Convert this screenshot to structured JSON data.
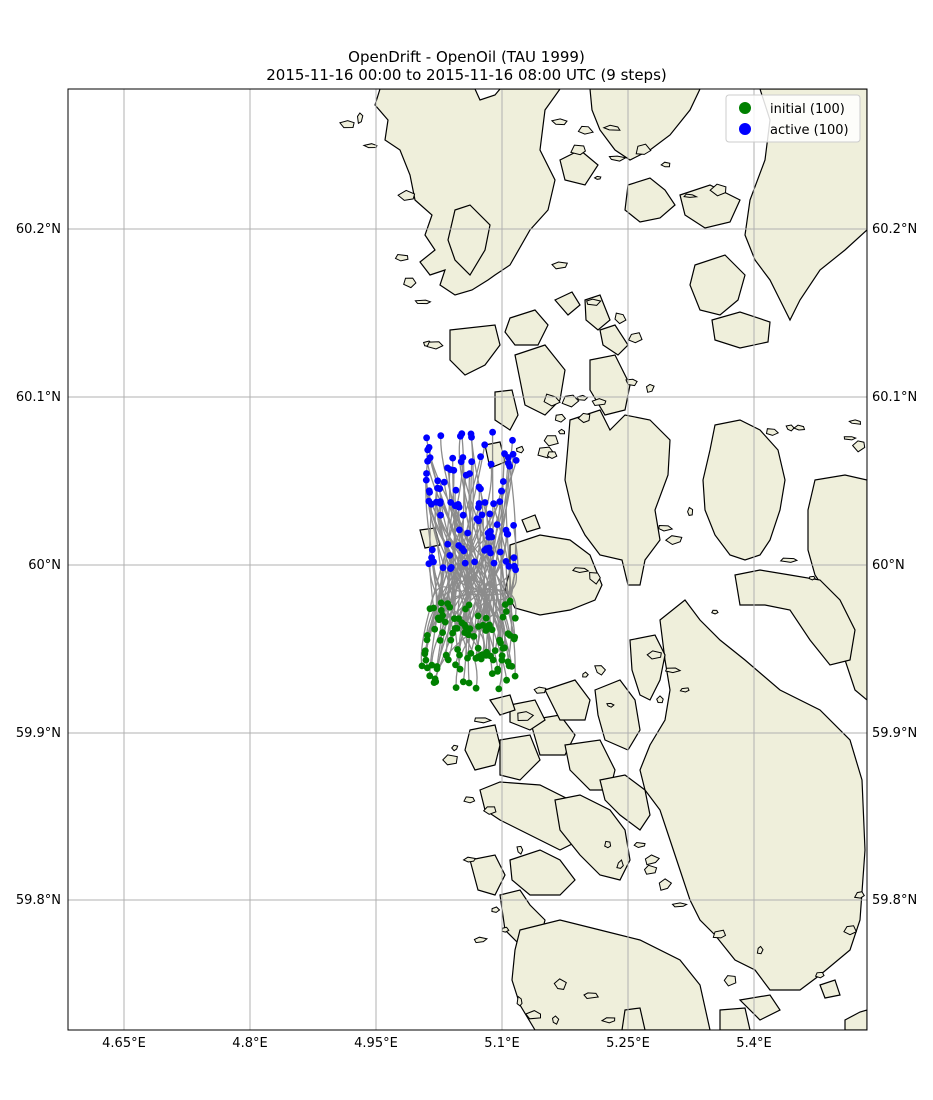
{
  "title": {
    "line1": "OpenDrift - OpenOil (TAU 1999)",
    "line2": "2015-11-16 00:00 to 2015-11-16 08:00 UTC (9 steps)"
  },
  "axes": {
    "lon_ticks": [
      "4.65°E",
      "4.8°E",
      "4.95°E",
      "5.1°E",
      "5.25°E",
      "5.4°E"
    ],
    "lat_ticks": [
      "60.2°N",
      "60.1°N",
      "60°N",
      "59.9°N",
      "59.8°N"
    ],
    "lon_range": [
      4.583,
      5.533
    ],
    "lat_range": [
      59.72,
      60.283
    ]
  },
  "legend": {
    "placement": "top-right",
    "items": [
      {
        "label": "initial (100)",
        "color": "#008000"
      },
      {
        "label": "active (100)",
        "color": "#0000ff"
      }
    ]
  },
  "colors": {
    "land": "#efefdb",
    "water": "#ffffff",
    "trajectory": "#808080",
    "grid": "#b0b0b0"
  },
  "chart_data": {
    "type": "scatter",
    "particles": 100,
    "steps": 9,
    "series": [
      {
        "name": "initial (100)",
        "marker": "green"
      },
      {
        "name": "active (100)",
        "marker": "blue"
      }
    ]
  }
}
